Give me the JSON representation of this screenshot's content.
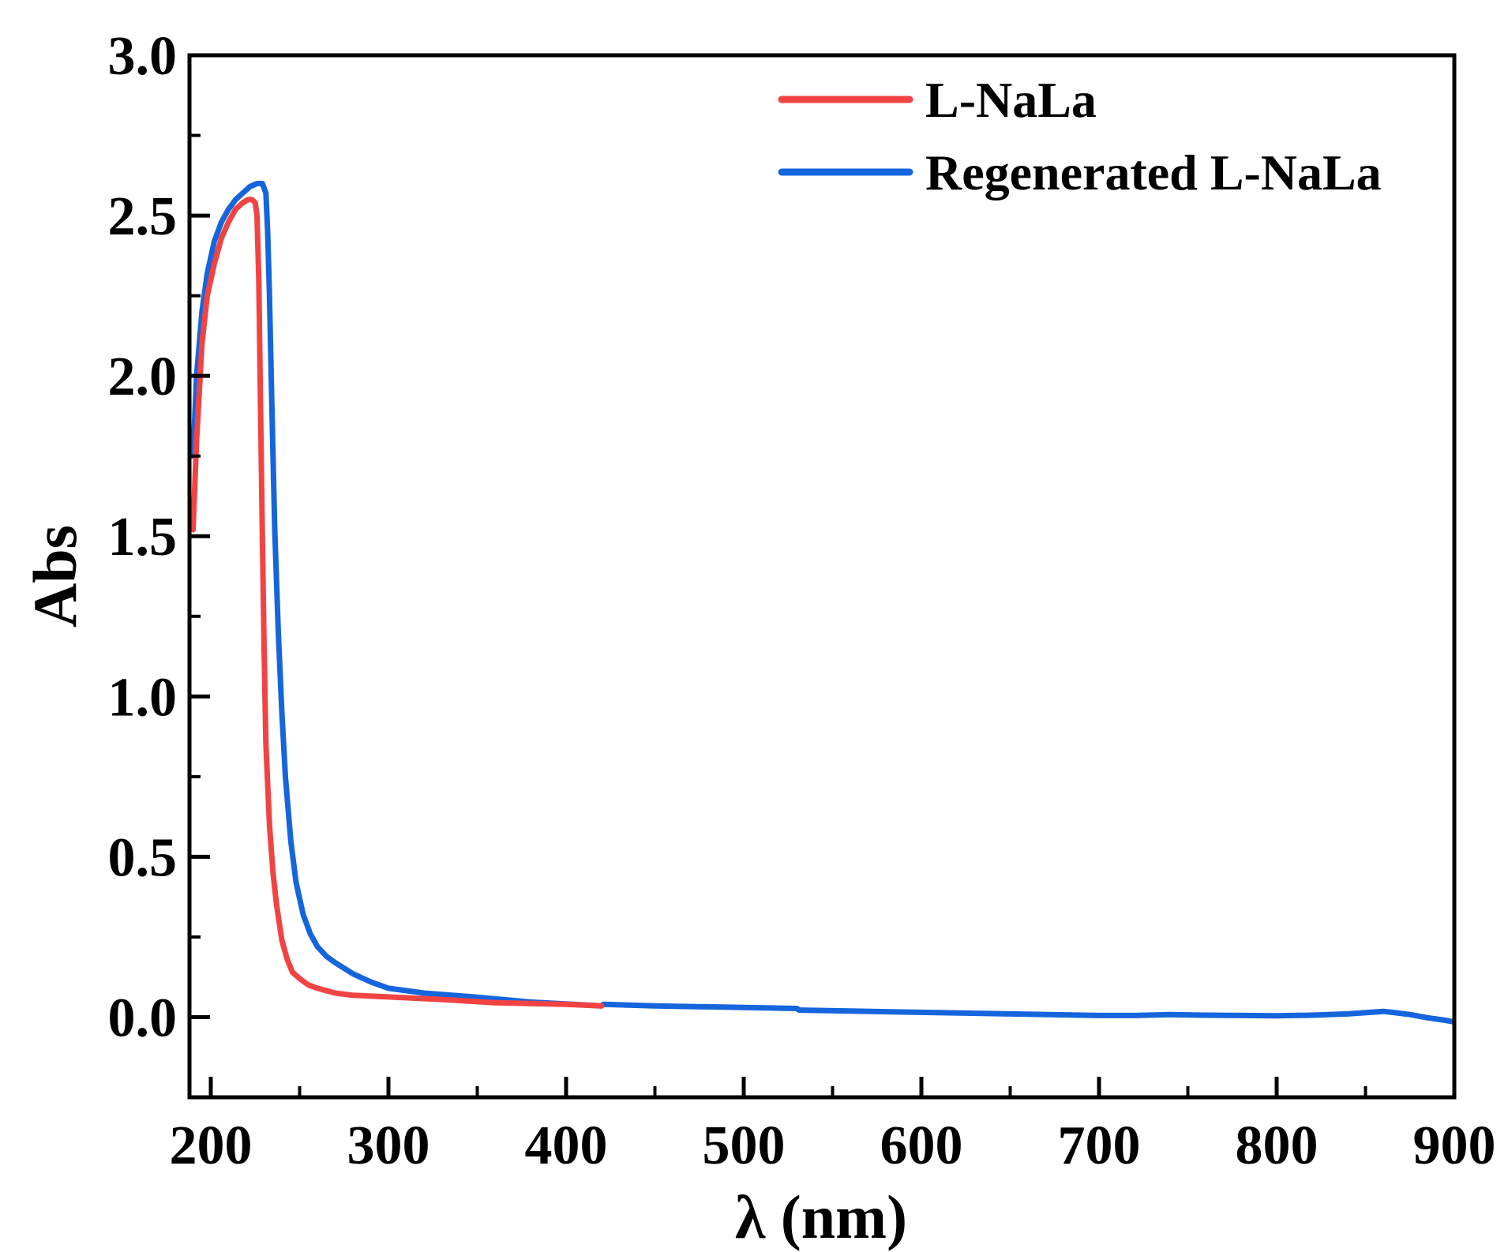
{
  "chart_data": {
    "type": "line",
    "title": "",
    "xlabel": "λ (nm)",
    "ylabel": "Abs",
    "xlim": [
      188,
      900
    ],
    "ylim": [
      -0.25,
      3.0
    ],
    "x_ticks": [
      200,
      300,
      400,
      500,
      600,
      700,
      800,
      900
    ],
    "x_tick_labels": [
      "200",
      "300",
      "400",
      "500",
      "600",
      "700",
      "800",
      "900"
    ],
    "y_ticks": [
      0.0,
      0.5,
      1.0,
      1.5,
      2.0,
      2.5,
      3.0
    ],
    "y_tick_labels": [
      "0.0",
      "0.5",
      "1.0",
      "1.5",
      "2.0",
      "2.5",
      "3.0"
    ],
    "grid": false,
    "legend_position": "top-right",
    "series": [
      {
        "name": "L-NaLa",
        "color": "#f24343",
        "x": [
          190,
          192,
          195,
          198,
          202,
          206,
          210,
          214,
          218,
          221,
          223,
          225,
          226,
          227,
          228,
          229,
          230,
          231,
          233,
          235,
          237,
          240,
          243,
          246,
          250,
          255,
          260,
          270,
          280,
          300,
          330,
          360,
          400,
          420
        ],
        "y": [
          1.52,
          1.8,
          2.1,
          2.25,
          2.35,
          2.43,
          2.48,
          2.52,
          2.54,
          2.55,
          2.55,
          2.54,
          2.5,
          2.3,
          1.9,
          1.5,
          1.15,
          0.85,
          0.6,
          0.45,
          0.35,
          0.24,
          0.18,
          0.14,
          0.12,
          0.1,
          0.09,
          0.075,
          0.068,
          0.063,
          0.055,
          0.045,
          0.04,
          0.035
        ]
      },
      {
        "name": "Regenerated L-NaLa",
        "color": "#1565dd",
        "x": [
          190,
          192,
          195,
          198,
          202,
          206,
          210,
          214,
          218,
          222,
          226,
          229,
          231,
          232,
          233,
          234,
          235,
          236,
          238,
          240,
          242,
          245,
          248,
          252,
          256,
          260,
          265,
          270,
          280,
          290,
          300,
          320,
          350,
          380,
          420,
          421,
          450,
          500,
          530,
          531,
          600,
          650,
          700,
          720,
          740,
          760,
          800,
          820,
          840,
          860,
          865,
          875,
          885,
          895,
          900
        ],
        "y": [
          1.75,
          2.0,
          2.2,
          2.32,
          2.42,
          2.48,
          2.52,
          2.55,
          2.57,
          2.59,
          2.6,
          2.6,
          2.57,
          2.45,
          2.25,
          2.0,
          1.75,
          1.52,
          1.2,
          0.95,
          0.75,
          0.55,
          0.42,
          0.32,
          0.26,
          0.22,
          0.19,
          0.17,
          0.135,
          0.11,
          0.09,
          0.075,
          0.062,
          0.047,
          0.035,
          0.04,
          0.035,
          0.03,
          0.027,
          0.022,
          0.015,
          0.01,
          0.005,
          0.005,
          0.008,
          0.006,
          0.004,
          0.006,
          0.01,
          0.018,
          0.015,
          0.008,
          -0.002,
          -0.01,
          -0.015
        ]
      }
    ]
  }
}
